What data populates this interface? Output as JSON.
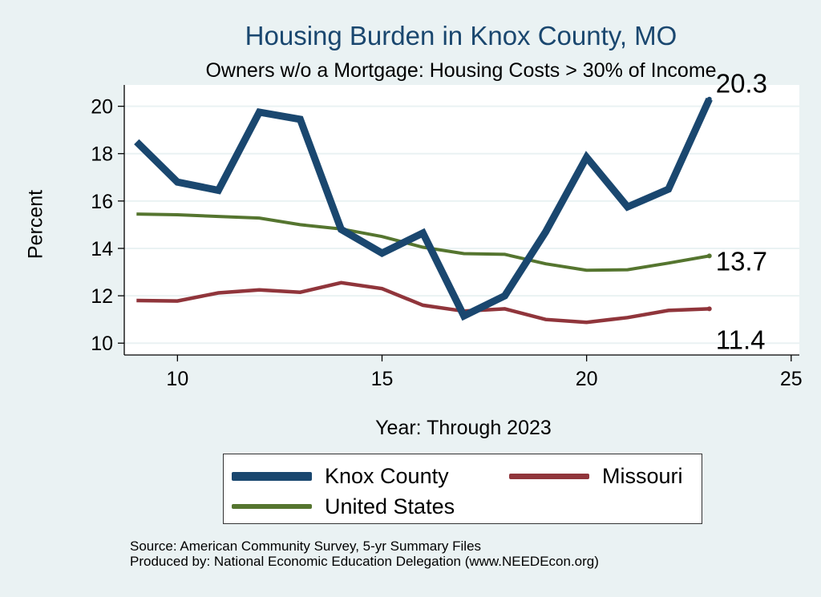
{
  "chart_data": {
    "type": "line",
    "title": "Housing Burden in Knox County, MO",
    "subtitle": "Owners w/o a Mortgage: Housing Costs > 30% of Income",
    "xlabel": "Year: Through 2023",
    "ylabel": "Percent",
    "xlim": [
      8.7,
      25.2
    ],
    "ylim": [
      9.5,
      20.9
    ],
    "xticks": [
      10,
      15,
      20,
      25
    ],
    "yticks": [
      10,
      12,
      14,
      16,
      18,
      20
    ],
    "grid": true,
    "x": [
      9,
      10,
      11,
      12,
      13,
      14,
      15,
      16,
      17,
      18,
      19,
      20,
      21,
      22,
      23
    ],
    "series": [
      {
        "name": "Knox County",
        "color": "#1a476f",
        "values": [
          18.5,
          16.8,
          16.45,
          19.75,
          19.45,
          14.8,
          13.8,
          14.65,
          11.15,
          12.0,
          14.7,
          17.85,
          15.75,
          16.5,
          20.3
        ],
        "end_label": "20.3"
      },
      {
        "name": "Missouri",
        "color": "#90353b",
        "values": [
          11.8,
          11.78,
          12.12,
          12.25,
          12.15,
          12.55,
          12.3,
          11.6,
          11.35,
          11.45,
          11.0,
          10.88,
          11.08,
          11.38,
          11.45
        ],
        "end_label": "11.4"
      },
      {
        "name": "United States",
        "color": "#55752f",
        "values": [
          15.45,
          15.42,
          15.35,
          15.28,
          15.0,
          14.82,
          14.5,
          14.05,
          13.78,
          13.75,
          13.35,
          13.08,
          13.1,
          13.38,
          13.68
        ],
        "end_label": "13.7"
      }
    ],
    "legend_position": "bottom"
  },
  "source": {
    "line1": "Source: American Community Survey, 5-yr Summary Files",
    "line2": "Produced by: National Economic Education Delegation (www.NEEDEcon.org)"
  }
}
